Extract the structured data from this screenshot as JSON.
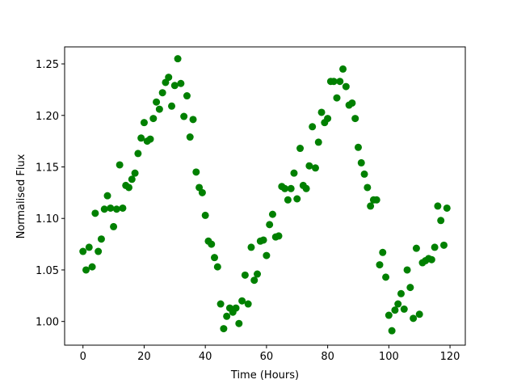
{
  "chart_data": {
    "type": "scatter",
    "xlabel": "Time (Hours)",
    "ylabel": "Normalised Flux",
    "color": "green",
    "x": [
      0,
      1,
      2,
      3,
      4,
      5,
      6,
      7,
      8,
      9,
      10,
      11,
      12,
      13,
      14,
      15,
      16,
      17,
      18,
      19,
      20,
      21,
      22,
      23,
      24,
      25,
      26,
      27,
      28,
      29,
      30,
      31,
      32,
      33,
      34,
      35,
      36,
      37,
      38,
      39,
      40,
      41,
      42,
      43,
      44,
      45,
      46,
      47,
      48,
      49,
      50,
      51,
      52,
      53,
      54,
      55,
      56,
      57,
      58,
      59,
      60,
      61,
      62,
      63,
      64,
      65,
      66,
      67,
      68,
      69,
      70,
      71,
      72,
      73,
      74,
      75,
      76,
      77,
      78,
      79,
      80,
      81,
      82,
      83,
      84,
      85,
      86,
      87,
      88,
      89,
      90,
      91,
      92,
      93,
      94,
      95,
      96,
      97,
      98,
      99,
      100,
      101,
      102,
      103,
      104,
      105,
      106,
      107,
      108,
      109,
      110,
      111,
      112,
      113,
      114,
      115,
      116,
      117,
      118,
      119
    ],
    "values": [
      1.068,
      1.05,
      1.072,
      1.053,
      1.105,
      1.068,
      1.08,
      1.109,
      1.122,
      1.11,
      1.092,
      1.109,
      1.152,
      1.11,
      1.132,
      1.13,
      1.138,
      1.144,
      1.163,
      1.178,
      1.193,
      1.175,
      1.177,
      1.197,
      1.213,
      1.206,
      1.222,
      1.232,
      1.237,
      1.209,
      1.229,
      1.255,
      1.231,
      1.199,
      1.219,
      1.179,
      1.196,
      1.145,
      1.13,
      1.125,
      1.103,
      1.078,
      1.075,
      1.062,
      1.053,
      1.017,
      0.993,
      1.005,
      1.013,
      1.009,
      1.013,
      0.998,
      1.02,
      1.045,
      1.017,
      1.072,
      1.04,
      1.046,
      1.078,
      1.079,
      1.064,
      1.094,
      1.104,
      1.082,
      1.083,
      1.131,
      1.129,
      1.118,
      1.129,
      1.144,
      1.119,
      1.168,
      1.132,
      1.129,
      1.151,
      1.189,
      1.149,
      1.174,
      1.203,
      1.193,
      1.197,
      1.233,
      1.233,
      1.217,
      1.233,
      1.245,
      1.228,
      1.21,
      1.212,
      1.197,
      1.169,
      1.154,
      1.143,
      1.13,
      1.112,
      1.118,
      1.118,
      1.055,
      1.067,
      1.043,
      1.006,
      0.991,
      1.011,
      1.017,
      1.027,
      1.012,
      1.05,
      1.033,
      1.003,
      1.071,
      1.007,
      1.057,
      1.059,
      1.061,
      1.06,
      1.072,
      1.112,
      1.098,
      1.074,
      1.11
    ],
    "xlim": [
      -6,
      125
    ],
    "ylim": [
      0.977,
      1.2665
    ],
    "xticks": [
      0,
      20,
      40,
      60,
      80,
      100,
      120
    ],
    "yticks": [
      {
        "value": 1,
        "label": "1.00"
      },
      1.05,
      {
        "value": 1.1,
        "label": "1.10"
      },
      1.15,
      {
        "value": 1.2,
        "label": "1.20"
      },
      1.25
    ]
  }
}
